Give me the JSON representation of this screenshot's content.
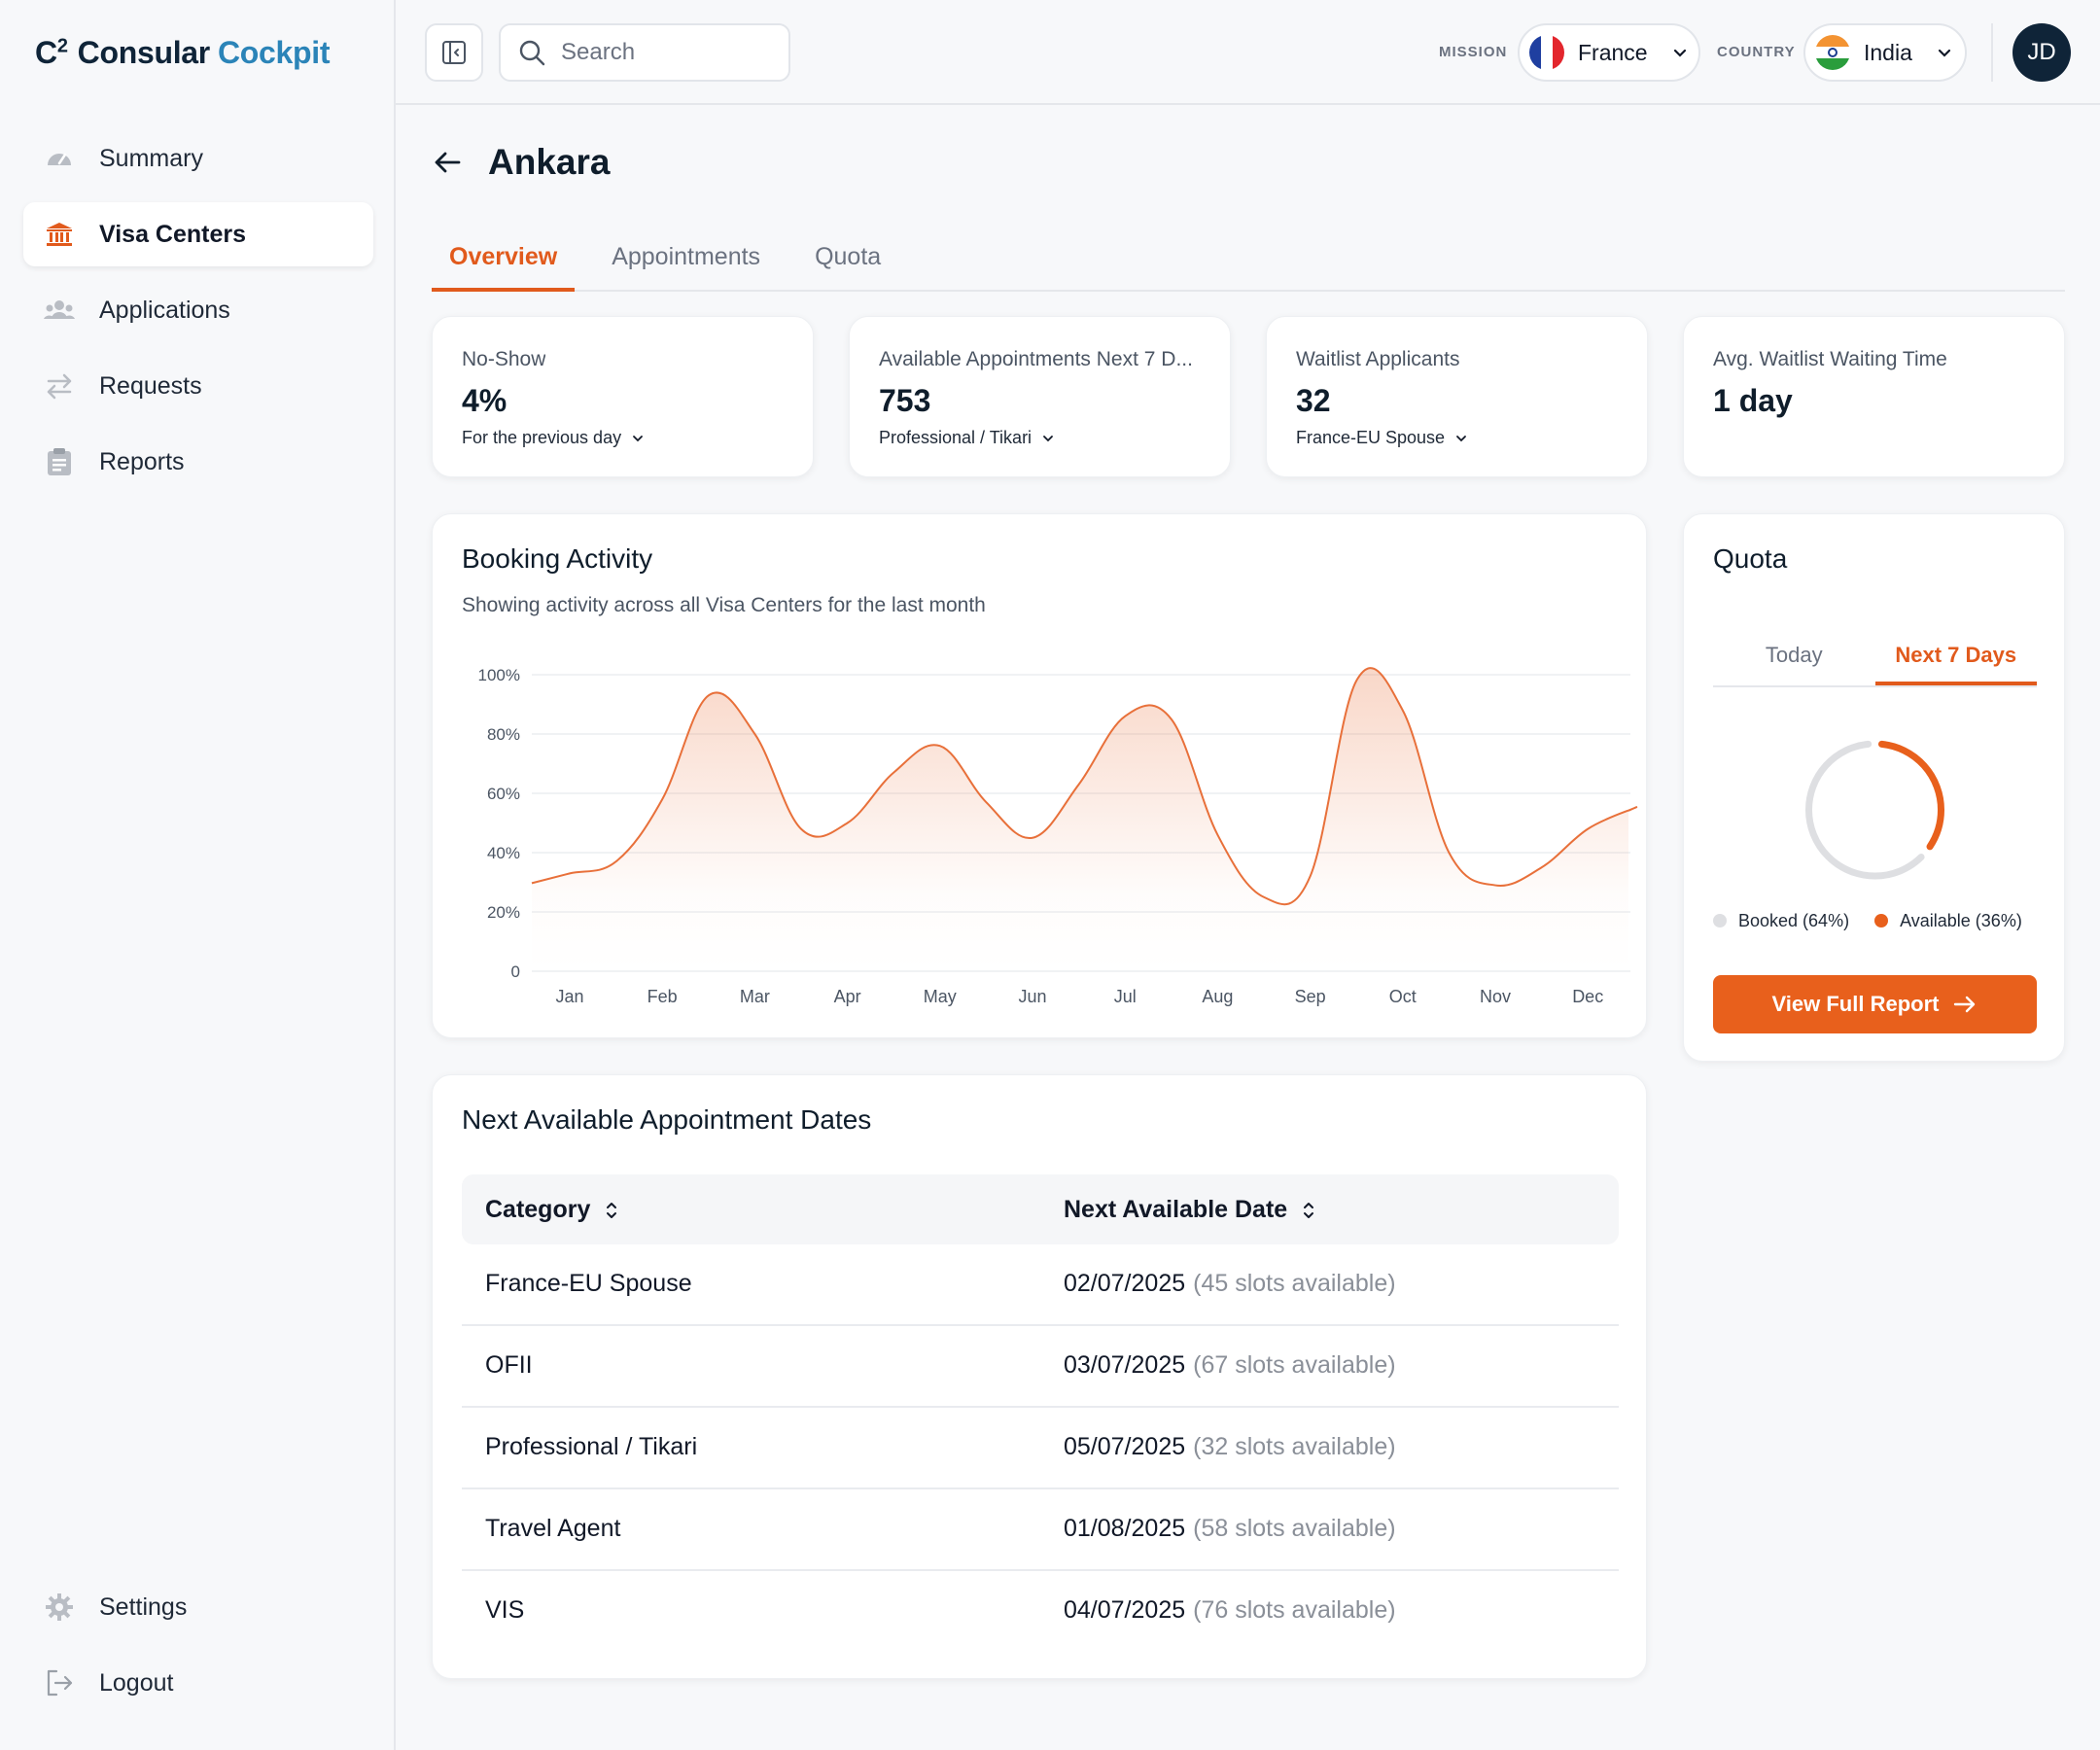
{
  "app": {
    "logo_c": "C",
    "logo_sup": "2",
    "logo_word1": "Consular",
    "logo_word2": "Cockpit"
  },
  "sidebar": {
    "items": [
      {
        "label": "Summary",
        "icon": "gauge-icon"
      },
      {
        "label": "Visa Centers",
        "icon": "bank-icon",
        "active": true
      },
      {
        "label": "Applications",
        "icon": "users-icon"
      },
      {
        "label": "Requests",
        "icon": "swap-arrows-icon"
      },
      {
        "label": "Reports",
        "icon": "clipboard-icon"
      }
    ],
    "bottom": [
      {
        "label": "Settings",
        "icon": "gear-icon"
      },
      {
        "label": "Logout",
        "icon": "logout-icon"
      }
    ]
  },
  "topbar": {
    "search_placeholder": "Search",
    "mission_label": "MISSION",
    "mission_value": "France",
    "country_label": "COUNTRY",
    "country_value": "India",
    "avatar_initials": "JD"
  },
  "page": {
    "title": "Ankara",
    "tabs": [
      "Overview",
      "Appointments",
      "Quota"
    ],
    "active_tab": "Overview"
  },
  "stats": [
    {
      "label": "No-Show",
      "value": "4%",
      "sub": "For the previous day"
    },
    {
      "label": "Available Appointments Next 7 D...",
      "value": "753",
      "sub": "Professional / Tikari"
    },
    {
      "label": "Waitlist Applicants",
      "value": "32",
      "sub": "France-EU Spouse"
    },
    {
      "label": "Avg. Waitlist Waiting Time",
      "value": "1 day",
      "sub": ""
    }
  ],
  "booking": {
    "title": "Booking Activity",
    "subtitle": "Showing activity across all Visa Centers for the last month"
  },
  "chart_data": {
    "type": "area",
    "categories": [
      "Jan",
      "Feb",
      "Mar",
      "Apr",
      "May",
      "Jun",
      "Jul",
      "Aug",
      "Sep",
      "Oct",
      "Nov",
      "Dec"
    ],
    "x": [
      0,
      0.5,
      1.0,
      1.5,
      2.0,
      2.5,
      3.0,
      3.5,
      4.0,
      4.5,
      5.0,
      5.5,
      6.0,
      6.5,
      7.0,
      7.5,
      8.0,
      8.5,
      9.0,
      9.5,
      10.0,
      10.5,
      11.0,
      11.5
    ],
    "values": [
      33,
      37,
      58,
      93,
      80,
      48,
      50,
      67,
      76,
      57,
      45,
      63,
      86,
      85,
      46,
      25,
      32,
      98,
      88,
      40,
      29,
      35,
      48,
      55
    ],
    "yticks": [
      "0",
      "20%",
      "40%",
      "60%",
      "80%",
      "100%"
    ],
    "ylim": [
      0,
      100
    ],
    "color": "#e8703a"
  },
  "quota": {
    "title": "Quota",
    "tabs": [
      "Today",
      "Next 7 Days"
    ],
    "active_tab": "Next 7 Days",
    "booked_pct": 64,
    "available_pct": 36,
    "legend_booked": "Booked (64%)",
    "legend_available": "Available (36%)",
    "booked_color": "#dedfe2",
    "available_color": "#e8601c",
    "button_label": "View Full Report"
  },
  "table": {
    "title": "Next Available Appointment Dates",
    "headers": [
      "Category",
      "Next Available Date"
    ],
    "rows": [
      {
        "category": "France-EU Spouse",
        "date": "02/07/2025",
        "slots": "(45 slots available)"
      },
      {
        "category": "OFII",
        "date": "03/07/2025",
        "slots": "(67 slots available)"
      },
      {
        "category": "Professional / Tikari",
        "date": "05/07/2025",
        "slots": "(32 slots available)"
      },
      {
        "category": "Travel Agent",
        "date": "01/08/2025",
        "slots": "(58 slots available)"
      },
      {
        "category": "VIS",
        "date": "04/07/2025",
        "slots": "(76 slots available)"
      }
    ]
  }
}
